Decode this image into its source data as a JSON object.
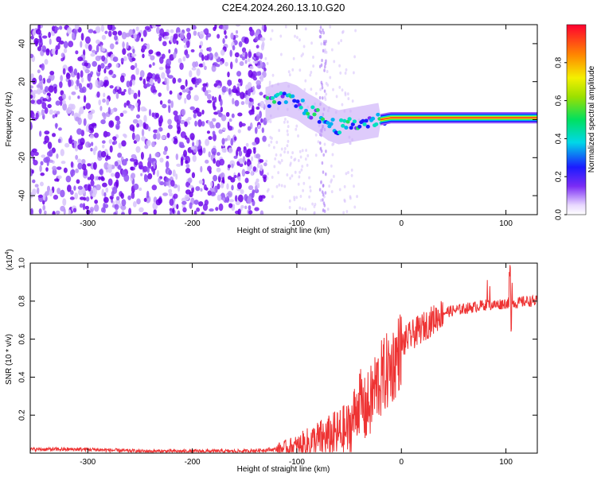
{
  "title": "C2E4.2024.260.13.10.G20",
  "chart_data": [
    {
      "type": "heatmap",
      "xlabel": "Height of straight line (km)",
      "ylabel": "Frequency (Hz)",
      "xlim": [
        -355,
        130
      ],
      "ylim": [
        -50,
        50
      ],
      "xticks": [
        "-300",
        "-200",
        "-100",
        "0",
        "100"
      ],
      "yticks": [
        "40",
        "20",
        "0",
        "-20",
        "-40"
      ],
      "colorbar": {
        "label": "Normalized spectral amplitude",
        "range": [
          0.0,
          1.0
        ],
        "ticks": [
          "0.0",
          "0.2",
          "0.4",
          "0.6",
          "0.8"
        ]
      },
      "noise_region_x": [
        -355,
        -130
      ],
      "signal_track": [
        {
          "x": -130,
          "y": 8
        },
        {
          "x": -120,
          "y": 10
        },
        {
          "x": -110,
          "y": 11
        },
        {
          "x": -100,
          "y": 9
        },
        {
          "x": -90,
          "y": 5
        },
        {
          "x": -80,
          "y": 2
        },
        {
          "x": -70,
          "y": -2
        },
        {
          "x": -60,
          "y": -4
        },
        {
          "x": -50,
          "y": -3
        },
        {
          "x": -40,
          "y": -2
        },
        {
          "x": -30,
          "y": -1
        },
        {
          "x": -20,
          "y": 0
        },
        {
          "x": -10,
          "y": 1
        },
        {
          "x": 0,
          "y": 1
        },
        {
          "x": 20,
          "y": 1
        },
        {
          "x": 50,
          "y": 1
        },
        {
          "x": 80,
          "y": 1
        },
        {
          "x": 100,
          "y": 1
        },
        {
          "x": 130,
          "y": 1
        }
      ]
    },
    {
      "type": "line",
      "xlabel": "Height of straight line (km)",
      "ylabel": "SNR (10 * v/v)",
      "yscale_label": "(x10",
      "yscale_exp": "4",
      "xlim": [
        -355,
        130
      ],
      "ylim": [
        0,
        1.0
      ],
      "xticks": [
        "-300",
        "-200",
        "-100",
        "0",
        "100"
      ],
      "yticks": [
        "1.0",
        "0.8",
        "0.6",
        "0.4",
        "0.2"
      ],
      "color": "#ee3333",
      "series": [
        {
          "x": [
            -355,
            -300,
            -250,
            -200,
            -150,
            -120,
            -100,
            -90,
            -80,
            -70,
            -60,
            -50,
            -45,
            -40,
            -35,
            -30,
            -25,
            -20,
            -15,
            -10,
            -5,
            0,
            5,
            10,
            15,
            20,
            25,
            30,
            35,
            40,
            50,
            60,
            70,
            80,
            90,
            100,
            110,
            120,
            130
          ],
          "y": [
            0.02,
            0.02,
            0.01,
            0.01,
            0.01,
            0.02,
            0.03,
            0.05,
            0.07,
            0.08,
            0.1,
            0.12,
            0.2,
            0.28,
            0.22,
            0.26,
            0.35,
            0.38,
            0.42,
            0.45,
            0.5,
            0.56,
            0.6,
            0.62,
            0.64,
            0.66,
            0.68,
            0.7,
            0.72,
            0.74,
            0.75,
            0.76,
            0.77,
            0.78,
            0.78,
            0.79,
            0.79,
            0.8,
            0.8
          ]
        }
      ]
    }
  ]
}
